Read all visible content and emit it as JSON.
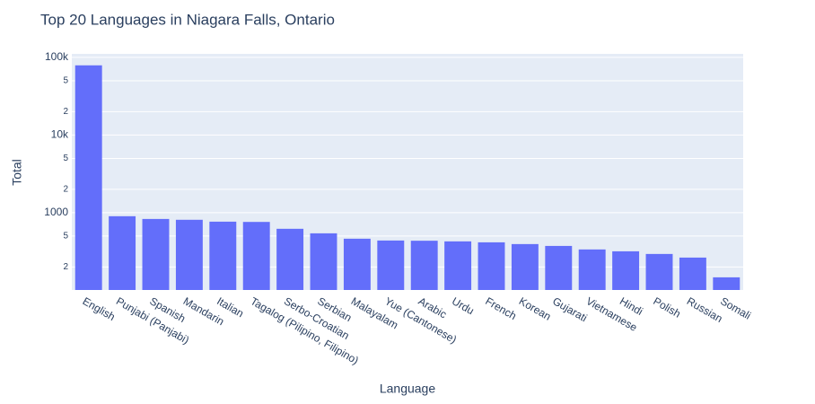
{
  "chart_data": {
    "type": "bar",
    "title": "Top 20 Languages in Niagara Falls, Ontario",
    "x_label": "Language",
    "y_label": "Total",
    "categories": [
      "English",
      "Punjabi (Panjabi)",
      "Spanish",
      "Mandarin",
      "Italian",
      "Tagalog (Pilipino, Filipino)",
      "Serbo-Croatian",
      "Serbian",
      "Malayalam",
      "Yue (Cantonese)",
      "Arabic",
      "Urdu",
      "French",
      "Korean",
      "Gujarati",
      "Vietnamese",
      "Hindi",
      "Polish",
      "Russian",
      "Somali"
    ],
    "values": [
      79000,
      900,
      830,
      810,
      766,
      760,
      620,
      542,
      462,
      438,
      435,
      427,
      415,
      394,
      373,
      336,
      318,
      294,
      264,
      147
    ],
    "color": "#636efa",
    "log_y": true,
    "ylim": [
      101,
      111000
    ],
    "yticks": [
      {
        "value": 200,
        "label": "2"
      },
      {
        "value": 500,
        "label": "5"
      },
      1000,
      {
        "value": 2000,
        "label": "2"
      },
      {
        "value": 5000,
        "label": "5"
      },
      {
        "value": 10000,
        "label": "10k"
      },
      {
        "value": 20000,
        "label": "2"
      },
      {
        "value": 50000,
        "label": "5"
      },
      {
        "value": 100000,
        "label": "100k"
      }
    ],
    "grid": true
  }
}
